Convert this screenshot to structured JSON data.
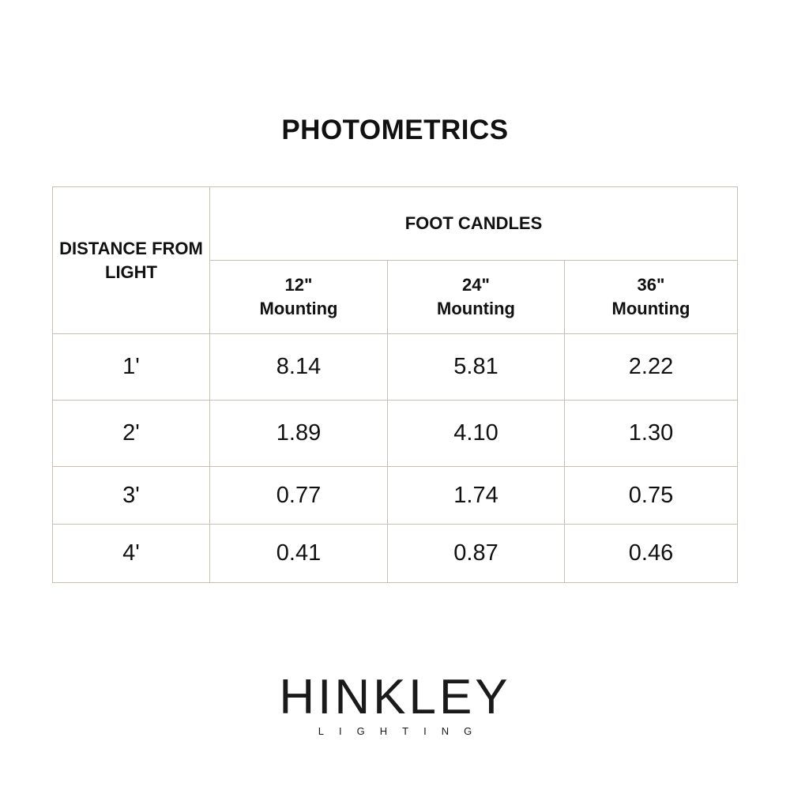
{
  "title": "PHOTOMETRICS",
  "table": {
    "row_header": "DISTANCE FROM LIGHT",
    "group_header": "FOOT CANDLES",
    "columns": [
      {
        "size": "12\"",
        "label": "Mounting"
      },
      {
        "size": "24\"",
        "label": "Mounting"
      },
      {
        "size": "36\"",
        "label": "Mounting"
      }
    ],
    "rows": [
      {
        "distance": "1'",
        "values": [
          "8.14",
          "5.81",
          "2.22"
        ]
      },
      {
        "distance": "2'",
        "values": [
          "1.89",
          "4.10",
          "1.30"
        ]
      },
      {
        "distance": "3'",
        "values": [
          "0.77",
          "1.74",
          "0.75"
        ]
      },
      {
        "distance": "4'",
        "values": [
          "0.41",
          "0.87",
          "0.46"
        ]
      }
    ]
  },
  "logo": {
    "brand": "HINKLEY",
    "sub": "LIGHTING"
  },
  "colors": {
    "border": "#c9bfb5",
    "text": "#111111"
  }
}
